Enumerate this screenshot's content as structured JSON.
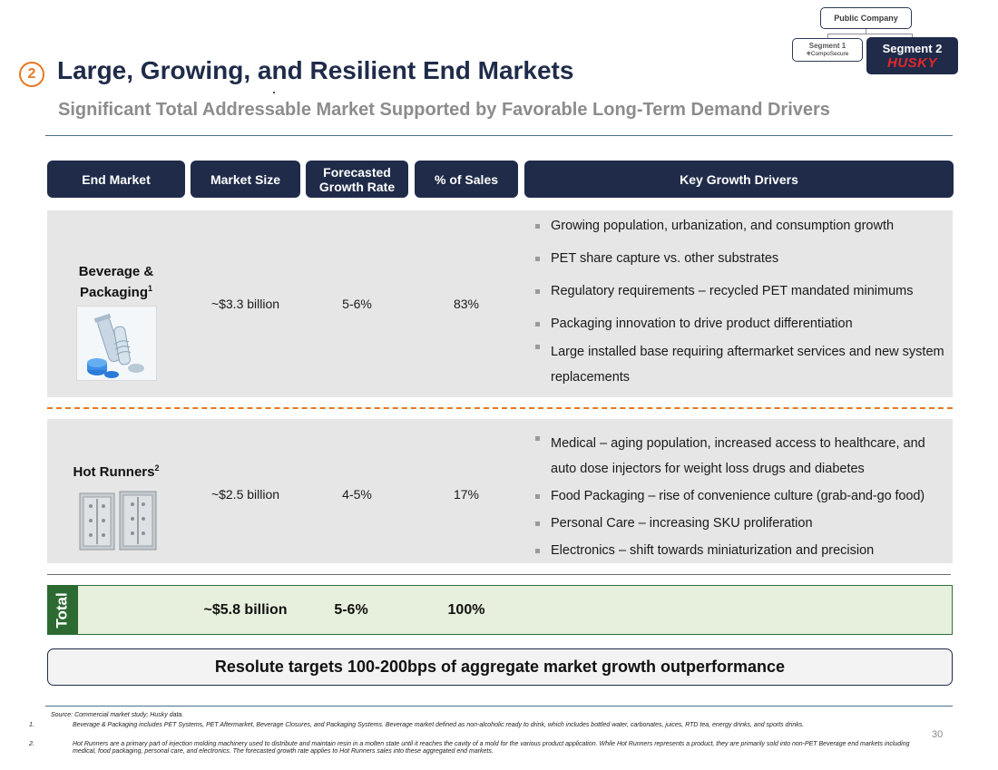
{
  "org": {
    "public_company": "Public Company",
    "segment1": "Segment 1",
    "segment1_logo": "CompoSecure",
    "segment2": "Segment 2",
    "segment2_logo": "HUSKY"
  },
  "title": {
    "number": "2",
    "text": "Large, Growing, and Resilient End Markets",
    "subtitle": "Significant Total Addressable Market Supported by Favorable Long-Term Demand Drivers"
  },
  "table": {
    "headers": {
      "end_market": "End Market",
      "market_size": "Market Size",
      "growth_rate": "Forecasted Growth Rate",
      "pct_sales": "% of Sales",
      "drivers": "Key Growth Drivers"
    },
    "rows": [
      {
        "name": "Beverage & Packaging",
        "footnote": "1",
        "size": "~$3.3 billion",
        "growth": "5-6%",
        "pct": "83%",
        "drivers": [
          "Growing population, urbanization, and consumption growth",
          "PET share capture vs. other substrates",
          "Regulatory requirements – recycled PET mandated minimums",
          "Packaging innovation to drive product differentiation",
          "Large installed base requiring aftermarket services and new system replacements"
        ]
      },
      {
        "name": "Hot Runners",
        "footnote": "2",
        "size": "~$2.5 billion",
        "growth": "4-5%",
        "pct": "17%",
        "drivers": [
          "Medical – aging population, increased access to healthcare, and auto dose injectors for weight loss drugs and diabetes",
          "Food Packaging – rise of convenience culture (grab-and-go food)",
          "Personal Care – increasing SKU proliferation",
          "Electronics – shift towards miniaturization and precision"
        ]
      }
    ],
    "total": {
      "label": "Total",
      "size": "~$5.8 billion",
      "growth": "5-6%",
      "pct": "100%"
    }
  },
  "callout": "Resolute targets 100-200bps of aggregate market growth outperformance",
  "footer": {
    "source": "Source: Commercial market study; Husky data.",
    "notes": [
      {
        "n": "1.",
        "text": "Beverage & Packaging includes PET Systems, PET Aftermarket, Beverage Closures, and Packaging Systems. Beverage market defined as non-alcoholic ready to drink, which includes bottled water, carbonates, juices, RTD tea, energy drinks, and sports drinks."
      },
      {
        "n": "2.",
        "text": "Hot Runners are a primary part of injection molding machinery used to distribute and maintain resin in a molten state until it reaches the cavity of a mold for the various product application. While Hot Runners represents a product, they are primarily sold into non-PET Beverage end markets including medical, food packaging, personal care, and electronics. The forecasted growth rate applies to Hot Runners sales into these aggregated end markets."
      }
    ],
    "page": "30"
  },
  "colors": {
    "navy": "#1f2b49",
    "orange": "#e87722",
    "green": "#2c6a32",
    "light_green": "#e7f0dc",
    "gray_row": "#e6e6e6"
  }
}
